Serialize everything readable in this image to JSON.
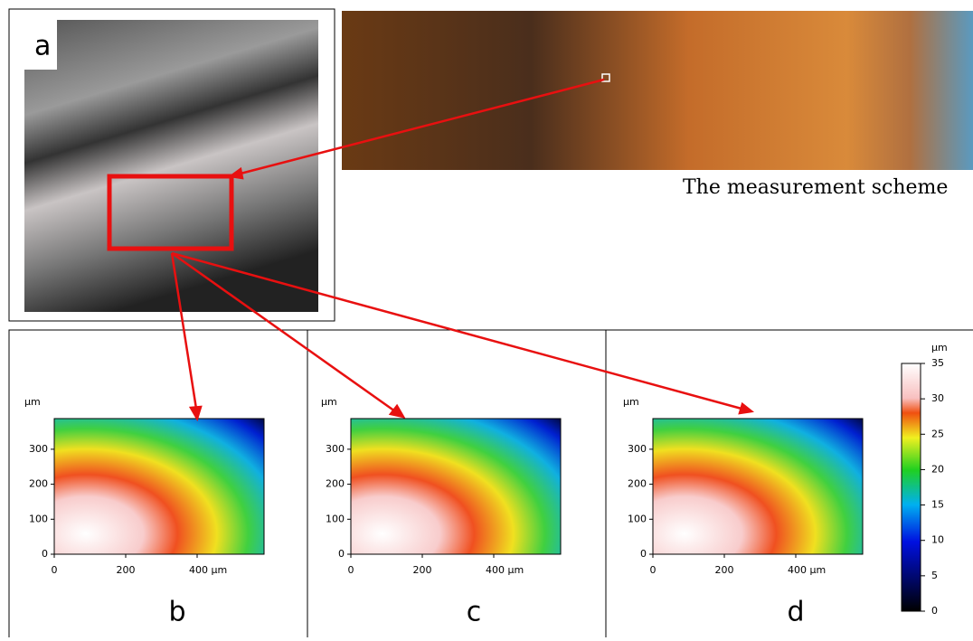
{
  "panel_a": {
    "label": "a"
  },
  "scheme": {
    "caption": "The measurement scheme"
  },
  "axis": {
    "unit": "µm",
    "yticks": [
      0,
      100,
      200,
      300
    ],
    "xticks": [
      0,
      200,
      {
        "value": 400,
        "label": "400 µm"
      }
    ]
  },
  "panels": [
    {
      "label": "b"
    },
    {
      "label": "c"
    },
    {
      "label": "d"
    }
  ],
  "colorbar": {
    "unit": "µm",
    "ticks": [
      0,
      5,
      10,
      15,
      20,
      25,
      30,
      35
    ]
  }
}
